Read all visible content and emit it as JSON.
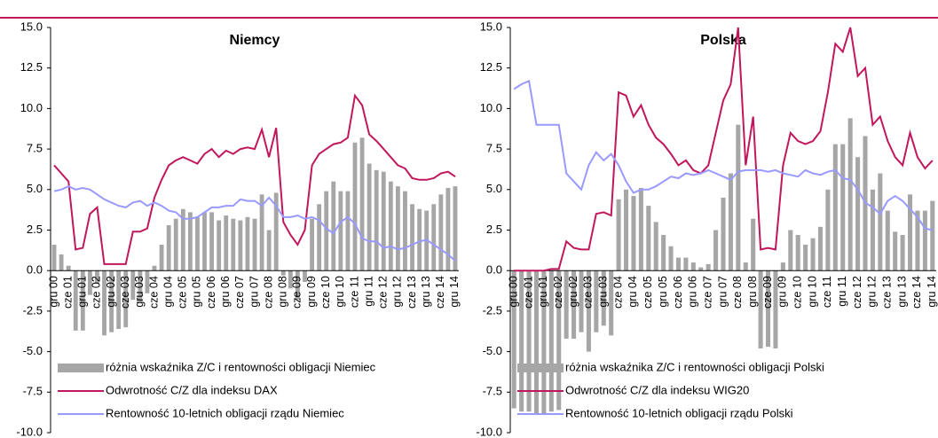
{
  "chart_data": [
    {
      "type": "combo",
      "title": "Niemcy",
      "categories": [
        "gru 00",
        null,
        "cze 01",
        null,
        "gru 01",
        null,
        "cze 02",
        null,
        "gru 02",
        null,
        "cze 03",
        null,
        "gru 03",
        null,
        "cze 04",
        null,
        "gru 04",
        null,
        "cze 05",
        null,
        "gru 05",
        null,
        "cze 06",
        null,
        "gru 06",
        null,
        "cze 07",
        null,
        "gru 07",
        null,
        "cze 08",
        null,
        "gru 08",
        null,
        "cze 09",
        null,
        "gru 09",
        null,
        "cze 10",
        null,
        "gru 10",
        null,
        "cze 11",
        null,
        "gru 11",
        null,
        "cze 12",
        null,
        "gru 12",
        null,
        "cze 13",
        null,
        "gru 13",
        null,
        "cze 14",
        null,
        "gru 14"
      ],
      "ylim": [
        -10,
        15
      ],
      "yticks": [
        {
          "value": -10,
          "label": "-10.0"
        },
        -2.5,
        {
          "value": -5,
          "label": "-5.0"
        },
        -7.5,
        {
          "value": 0,
          "label": "0.0"
        },
        2.5,
        {
          "value": 5,
          "label": "5.0"
        },
        7.5,
        {
          "value": 10,
          "label": "10.0"
        },
        12.5,
        {
          "value": 15,
          "label": "15.0"
        }
      ],
      "grid": false,
      "series": [
        {
          "name": "różnia wskaźnika Z/C i rentowności obligacji Niemiec",
          "type": "bar",
          "color": "#a6a6a6",
          "values": [
            1.6,
            1.0,
            0.3,
            -3.7,
            -3.7,
            -1.5,
            -0.8,
            -4.0,
            -3.8,
            -3.6,
            -3.5,
            -1.8,
            -1.9,
            -1.4,
            0.3,
            1.6,
            2.8,
            3.2,
            3.8,
            3.6,
            3.3,
            3.6,
            3.6,
            3.1,
            3.4,
            3.2,
            3.1,
            3.3,
            3.2,
            4.7,
            2.5,
            4.8,
            -0.3,
            -1.1,
            -1.8,
            -0.7,
            3.2,
            4.1,
            4.9,
            5.5,
            4.9,
            4.9,
            7.9,
            8.2,
            6.6,
            6.2,
            6.1,
            5.5,
            5.2,
            4.9,
            4.1,
            3.8,
            3.7,
            4.1,
            4.7,
            5.1,
            5.2
          ]
        },
        {
          "name": "Odwrotność C/Z dla indeksu DAX",
          "type": "line",
          "color": "#c0175d",
          "values": [
            6.5,
            6.0,
            5.5,
            1.3,
            1.4,
            3.5,
            3.9,
            0.4,
            0.4,
            0.4,
            0.4,
            2.4,
            2.4,
            2.6,
            4.5,
            5.6,
            6.5,
            6.8,
            7.0,
            6.8,
            6.6,
            7.2,
            7.5,
            7.0,
            7.4,
            7.2,
            7.5,
            7.6,
            7.5,
            8.7,
            7.0,
            8.8,
            3.0,
            2.2,
            1.6,
            2.5,
            6.5,
            7.2,
            7.5,
            7.8,
            7.9,
            8.2,
            10.8,
            10.2,
            8.4,
            8.0,
            7.5,
            7.0,
            6.5,
            6.3,
            5.7,
            5.6,
            5.6,
            5.7,
            6.0,
            6.1,
            5.8
          ]
        },
        {
          "name": "Rentowność 10-letnich obligacji rządu Niemiec",
          "type": "line",
          "color": "#9999ff",
          "values": [
            4.9,
            5.0,
            5.2,
            5.0,
            5.1,
            5.0,
            4.7,
            4.4,
            4.2,
            4.0,
            3.9,
            4.2,
            4.3,
            4.0,
            4.2,
            4.0,
            3.7,
            3.6,
            3.2,
            3.2,
            3.3,
            3.6,
            3.9,
            3.9,
            4.0,
            4.0,
            4.4,
            4.3,
            4.3,
            4.0,
            4.5,
            4.0,
            3.3,
            3.3,
            3.4,
            3.2,
            3.3,
            3.1,
            2.6,
            2.3,
            3.0,
            3.3,
            2.9,
            2.0,
            1.8,
            1.8,
            1.4,
            1.5,
            1.3,
            1.4,
            1.6,
            1.8,
            1.9,
            1.6,
            1.3,
            1.0,
            0.6
          ]
        }
      ]
    },
    {
      "type": "combo",
      "title": "Polska",
      "categories": [
        "gru 00",
        null,
        "cze 01",
        null,
        "gru 01",
        null,
        "cze 02",
        null,
        "gru 02",
        null,
        "cze 03",
        null,
        "gru 03",
        null,
        "cze 04",
        null,
        "gru 04",
        null,
        "cze 05",
        null,
        "gru 05",
        null,
        "cze 06",
        null,
        "gru 06",
        null,
        "cze 07",
        null,
        "gru 07",
        null,
        "cze 08",
        null,
        "gru 08",
        null,
        "cze 09",
        null,
        "gru 09",
        null,
        "cze 10",
        null,
        "gru 10",
        null,
        "cze 11",
        null,
        "gru 11",
        null,
        "cze 12",
        null,
        "gru 12",
        null,
        "cze 13",
        null,
        "gru 13",
        null,
        "cze 14",
        null,
        "gru 14"
      ],
      "ylim": [
        -10,
        15
      ],
      "yticks": [
        {
          "value": -10,
          "label": "-10.0"
        },
        -2.5,
        {
          "value": -5,
          "label": "-5.0"
        },
        -7.5,
        {
          "value": 0,
          "label": "0.0"
        },
        2.5,
        {
          "value": 5,
          "label": "5.0"
        },
        7.5,
        {
          "value": 10,
          "label": "10.0"
        },
        12.5,
        {
          "value": 15,
          "label": "15.0"
        }
      ],
      "grid": false,
      "series": [
        {
          "name": "różnia wskaźnika Z/C i rentowności obligacji Polski",
          "type": "bar",
          "color": "#a6a6a6",
          "values": [
            -8.5,
            -8.7,
            -8.7,
            -8.8,
            -8.8,
            -8.7,
            -8.6,
            -4.2,
            -4.2,
            -3.8,
            -5.0,
            -3.8,
            -3.4,
            -4.0,
            4.4,
            5.0,
            4.6,
            5.1,
            4.0,
            3.0,
            2.2,
            1.5,
            0.8,
            0.8,
            0.5,
            0.2,
            0.4,
            2.5,
            4.5,
            6.0,
            9.0,
            0.5,
            3.2,
            -4.8,
            -4.7,
            -4.8,
            0.5,
            2.5,
            2.2,
            1.6,
            2.0,
            2.7,
            5.0,
            7.8,
            7.8,
            9.4,
            7.0,
            8.3,
            5.0,
            6.0,
            3.7,
            2.4,
            2.2,
            4.7,
            3.7,
            3.7,
            4.3
          ]
        },
        {
          "name": "Odwrotność C/Z dla indeksu WIG20",
          "type": "line",
          "color": "#c0175d",
          "values": [
            0,
            0,
            0,
            0,
            0,
            0.1,
            0.1,
            1.8,
            1.4,
            1.3,
            1.3,
            3.5,
            3.6,
            3.4,
            11.0,
            10.8,
            9.5,
            10.2,
            9.0,
            8.2,
            7.8,
            7.2,
            6.5,
            6.8,
            6.2,
            6.0,
            6.5,
            8.5,
            10.5,
            11.5,
            15.0,
            6.5,
            9.5,
            1.3,
            1.4,
            1.3,
            6.5,
            8.5,
            8.0,
            7.8,
            8.0,
            8.6,
            11.0,
            14.0,
            13.5,
            15.0,
            12.0,
            12.5,
            9.0,
            9.5,
            8.0,
            7.0,
            6.5,
            8.5,
            7.0,
            6.3,
            6.8
          ]
        },
        {
          "name": "Rentowność 10-letnich obligacji rządu Polski",
          "type": "line",
          "color": "#9999ff",
          "values": [
            11.2,
            11.5,
            11.7,
            9.0,
            9.0,
            9.0,
            9.0,
            6.0,
            5.5,
            5.0,
            6.5,
            7.3,
            6.8,
            7.2,
            6.5,
            5.5,
            4.8,
            5.0,
            5.0,
            5.2,
            5.5,
            5.8,
            5.7,
            6.0,
            5.9,
            6.0,
            6.2,
            6.0,
            5.8,
            5.6,
            6.1,
            6.2,
            6.2,
            6.2,
            6.1,
            6.2,
            6.0,
            5.9,
            5.8,
            6.2,
            6.0,
            5.9,
            6.1,
            6.2,
            5.7,
            5.6,
            5.0,
            4.2,
            3.9,
            3.5,
            4.3,
            4.6,
            4.3,
            3.8,
            3.3,
            2.6,
            2.5
          ]
        }
      ]
    }
  ]
}
